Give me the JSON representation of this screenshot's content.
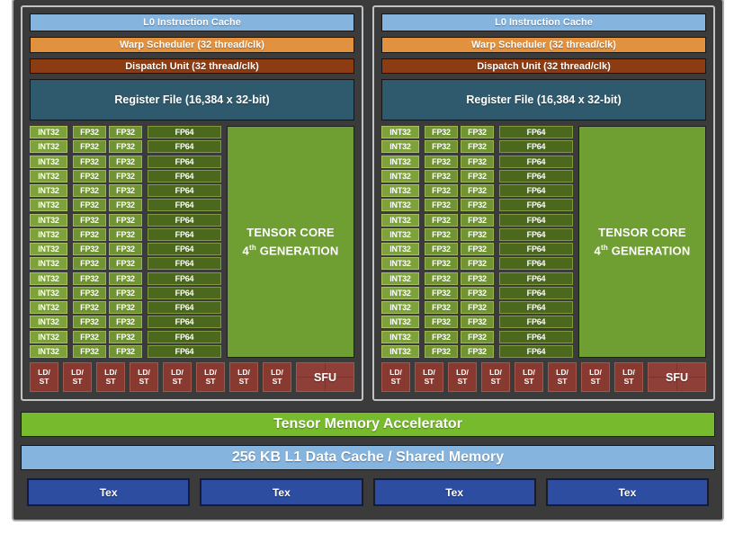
{
  "colors": {
    "background_gray": "#3b3b3b",
    "cache_blue": "#85b4df",
    "warp_orange": "#e2913f",
    "dispatch_rust": "#8b3c12",
    "regfile_teal": "#2f5a6d",
    "int32_green": "#7da23a",
    "fp32_green": "#719432",
    "fp64_dark_green": "#4b681d",
    "tensor_green": "#6f9e33",
    "ldst_red": "#883a31",
    "tma_green": "#78ba2d",
    "tex_blue": "#2d4da1"
  },
  "partitions": [
    {
      "l0_label": "L0 Instruction Cache",
      "warp_label": "Warp Scheduler (32 thread/clk)",
      "dispatch_label": "Dispatch Unit (32 thread/clk)",
      "regfile_label": "Register File (16,384 x 32-bit)",
      "core_grid": {
        "rows": 16,
        "int32_label": "INT32",
        "fp32_label": "FP32",
        "fp64_label": "FP64"
      },
      "tensor_core": {
        "line1": "TENSOR CORE",
        "gen_number": "4",
        "gen_sup": "th",
        "gen_rest": " GENERATION"
      },
      "ldst": {
        "count": 8,
        "line1": "LD/",
        "line2": "ST"
      },
      "sfu_label": "SFU"
    },
    {
      "l0_label": "L0 Instruction Cache",
      "warp_label": "Warp Scheduler (32 thread/clk)",
      "dispatch_label": "Dispatch Unit (32 thread/clk)",
      "regfile_label": "Register File (16,384 x 32-bit)",
      "core_grid": {
        "rows": 16,
        "int32_label": "INT32",
        "fp32_label": "FP32",
        "fp64_label": "FP64"
      },
      "tensor_core": {
        "line1": "TENSOR CORE",
        "gen_number": "4",
        "gen_sup": "th",
        "gen_rest": " GENERATION"
      },
      "ldst": {
        "count": 8,
        "line1": "LD/",
        "line2": "ST"
      },
      "sfu_label": "SFU"
    }
  ],
  "bottom": {
    "tma_label": "Tensor Memory Accelerator",
    "l1_label": "256 KB L1 Data Cache / Shared Memory",
    "tex_units": [
      "Tex",
      "Tex",
      "Tex",
      "Tex"
    ]
  }
}
